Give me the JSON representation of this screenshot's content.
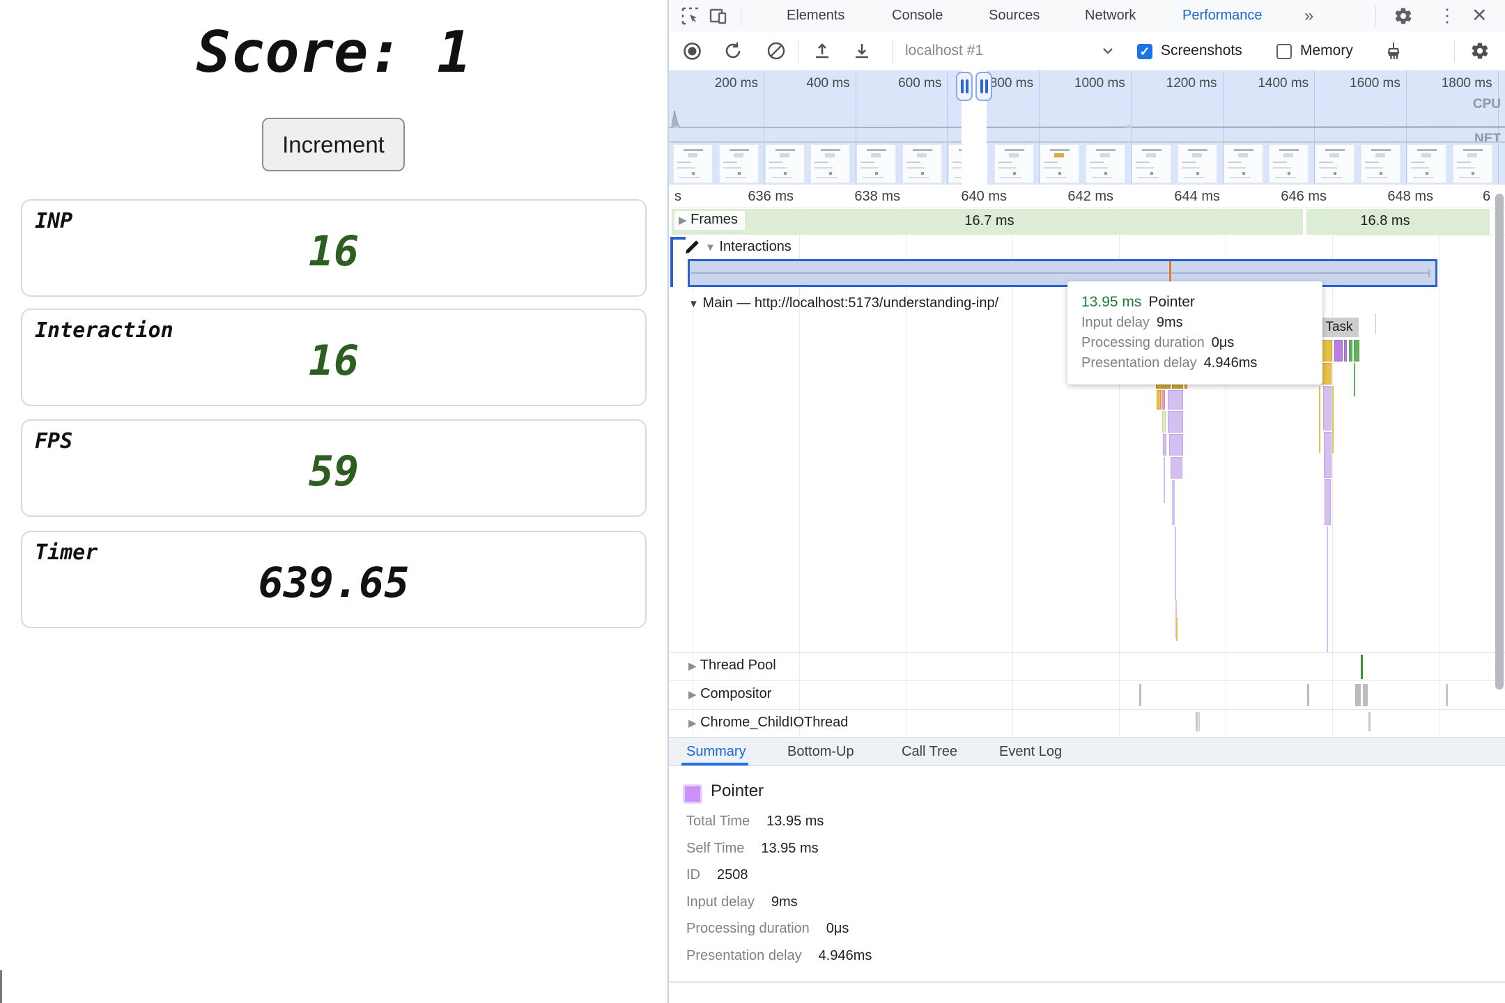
{
  "app": {
    "score_heading": "Score: 1",
    "increment_button": "Increment",
    "cards": [
      {
        "label": "INP",
        "value": "16"
      },
      {
        "label": "Interaction",
        "value": "16"
      },
      {
        "label": "FPS",
        "value": "59"
      },
      {
        "label": "Timer",
        "value": "639.65"
      }
    ]
  },
  "devtools": {
    "tabs": [
      "Elements",
      "Console",
      "Sources",
      "Network",
      "Performance"
    ],
    "more_tabs": "»",
    "toolbar": {
      "profile_select": "localhost #1",
      "screenshots_label": "Screenshots",
      "memory_label": "Memory",
      "check_glyph": "✓"
    },
    "overview": {
      "ticks": [
        "200 ms",
        "400 ms",
        "600 ms",
        "800 ms",
        "1000 ms",
        "1200 ms",
        "1400 ms",
        "1600 ms",
        "1800 ms"
      ],
      "cpu_label": "CPU",
      "net_label": "NET"
    },
    "timeline": {
      "left_cut_label": "s",
      "ticks": [
        "636 ms",
        "638 ms",
        "640 ms",
        "642 ms",
        "644 ms",
        "646 ms",
        "648 ms"
      ],
      "right_cut_label": "6"
    },
    "frames": {
      "label": "Frames",
      "segment1": "16.7 ms",
      "segment2": "16.8 ms"
    },
    "interactions": {
      "label": "Interactions"
    },
    "main_thread": {
      "label": "Main — http://localhost:5173/understanding-inp/",
      "task_label": "Task"
    },
    "threads": [
      "Thread Pool",
      "Compositor",
      "Chrome_ChildIOThread"
    ],
    "tooltip": {
      "duration": "13.95 ms",
      "name": "Pointer",
      "rows": [
        {
          "label": "Input delay",
          "value": "9ms"
        },
        {
          "label": "Processing duration",
          "value": "0μs"
        },
        {
          "label": "Presentation delay",
          "value": "4.946ms"
        }
      ]
    },
    "drawer_tabs": [
      "Summary",
      "Bottom-Up",
      "Call Tree",
      "Event Log"
    ],
    "summary": {
      "legend_name": "Pointer",
      "rows": [
        {
          "label": "Total Time",
          "value": "13.95 ms"
        },
        {
          "label": "Self Time",
          "value": "13.95 ms"
        },
        {
          "label": "ID",
          "value": "2508"
        },
        {
          "label": "Input delay",
          "value": "9ms"
        },
        {
          "label": "Processing duration",
          "value": "0μs"
        },
        {
          "label": "Presentation delay",
          "value": "4.946ms"
        }
      ]
    },
    "colors": {
      "accent_blue": "#1a73e8",
      "green_value": "#1a7d37",
      "interaction_border": "#2962cc"
    }
  }
}
